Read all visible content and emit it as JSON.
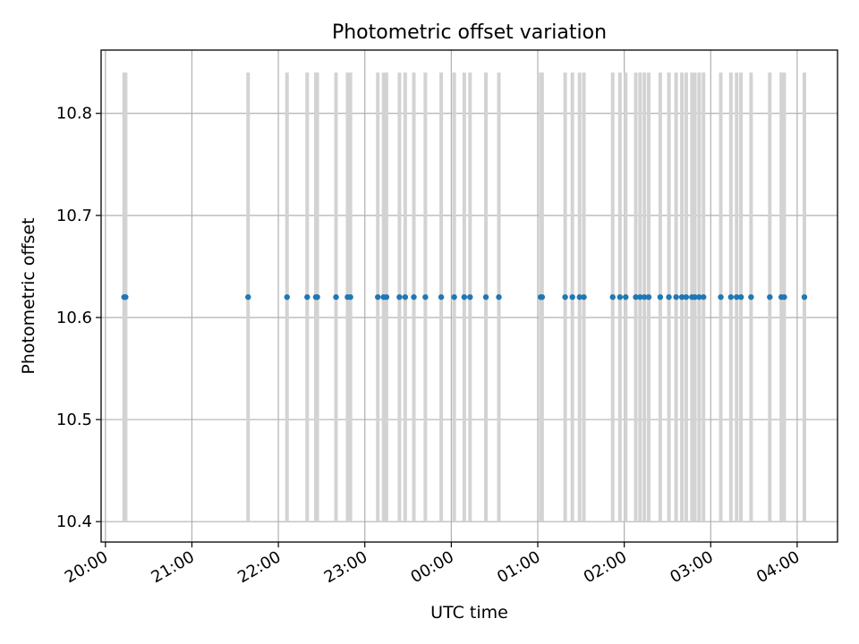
{
  "chart_data": {
    "type": "scatter",
    "title": "Photometric offset variation",
    "xlabel": "UTC time",
    "ylabel": "Photometric offset",
    "x_unit": "UTC time of day (HH:MM); values after midnight belong to the following day",
    "xlim": [
      "19:57",
      "04:28"
    ],
    "ylim": [
      10.38,
      10.862
    ],
    "x_ticks": [
      "20:00",
      "21:00",
      "22:00",
      "23:00",
      "00:00",
      "01:00",
      "02:00",
      "03:00",
      "04:00"
    ],
    "y_ticks": [
      "10.4",
      "10.5",
      "10.6",
      "10.7",
      "10.8"
    ],
    "grid": true,
    "bar_range": [
      10.4,
      10.84
    ],
    "colors": {
      "points": "#1f77b4",
      "bars": "#d3d3d3",
      "grid": "#b0b0b0"
    },
    "series": [
      {
        "values": [
          {
            "x": "20:13",
            "y": 10.62
          },
          {
            "x": "20:14",
            "y": 10.62
          },
          {
            "x": "21:39",
            "y": 10.62
          },
          {
            "x": "22:06",
            "y": 10.62
          },
          {
            "x": "22:20",
            "y": 10.62
          },
          {
            "x": "22:26",
            "y": 10.62
          },
          {
            "x": "22:27",
            "y": 10.62
          },
          {
            "x": "22:40",
            "y": 10.62
          },
          {
            "x": "22:48",
            "y": 10.62
          },
          {
            "x": "22:50",
            "y": 10.62
          },
          {
            "x": "23:09",
            "y": 10.62
          },
          {
            "x": "23:13",
            "y": 10.62
          },
          {
            "x": "23:15",
            "y": 10.62
          },
          {
            "x": "23:24",
            "y": 10.62
          },
          {
            "x": "23:28",
            "y": 10.62
          },
          {
            "x": "23:34",
            "y": 10.62
          },
          {
            "x": "23:42",
            "y": 10.62
          },
          {
            "x": "23:53",
            "y": 10.62
          },
          {
            "x": "00:02",
            "y": 10.62
          },
          {
            "x": "00:09",
            "y": 10.62
          },
          {
            "x": "00:13",
            "y": 10.62
          },
          {
            "x": "00:24",
            "y": 10.62
          },
          {
            "x": "00:33",
            "y": 10.62
          },
          {
            "x": "01:02",
            "y": 10.62
          },
          {
            "x": "01:03",
            "y": 10.62
          },
          {
            "x": "01:19",
            "y": 10.62
          },
          {
            "x": "01:24",
            "y": 10.62
          },
          {
            "x": "01:29",
            "y": 10.62
          },
          {
            "x": "01:32",
            "y": 10.62
          },
          {
            "x": "01:52",
            "y": 10.62
          },
          {
            "x": "01:57",
            "y": 10.62
          },
          {
            "x": "02:01",
            "y": 10.62
          },
          {
            "x": "02:08",
            "y": 10.62
          },
          {
            "x": "02:11",
            "y": 10.62
          },
          {
            "x": "02:14",
            "y": 10.62
          },
          {
            "x": "02:17",
            "y": 10.62
          },
          {
            "x": "02:25",
            "y": 10.62
          },
          {
            "x": "02:31",
            "y": 10.62
          },
          {
            "x": "02:36",
            "y": 10.62
          },
          {
            "x": "02:40",
            "y": 10.62
          },
          {
            "x": "02:43",
            "y": 10.62
          },
          {
            "x": "02:47",
            "y": 10.62
          },
          {
            "x": "02:49",
            "y": 10.62
          },
          {
            "x": "02:52",
            "y": 10.62
          },
          {
            "x": "02:55",
            "y": 10.62
          },
          {
            "x": "03:07",
            "y": 10.62
          },
          {
            "x": "03:14",
            "y": 10.62
          },
          {
            "x": "03:18",
            "y": 10.62
          },
          {
            "x": "03:21",
            "y": 10.62
          },
          {
            "x": "03:28",
            "y": 10.62
          },
          {
            "x": "03:41",
            "y": 10.62
          },
          {
            "x": "03:49",
            "y": 10.62
          },
          {
            "x": "03:51",
            "y": 10.62
          },
          {
            "x": "04:05",
            "y": 10.62
          }
        ]
      }
    ]
  }
}
